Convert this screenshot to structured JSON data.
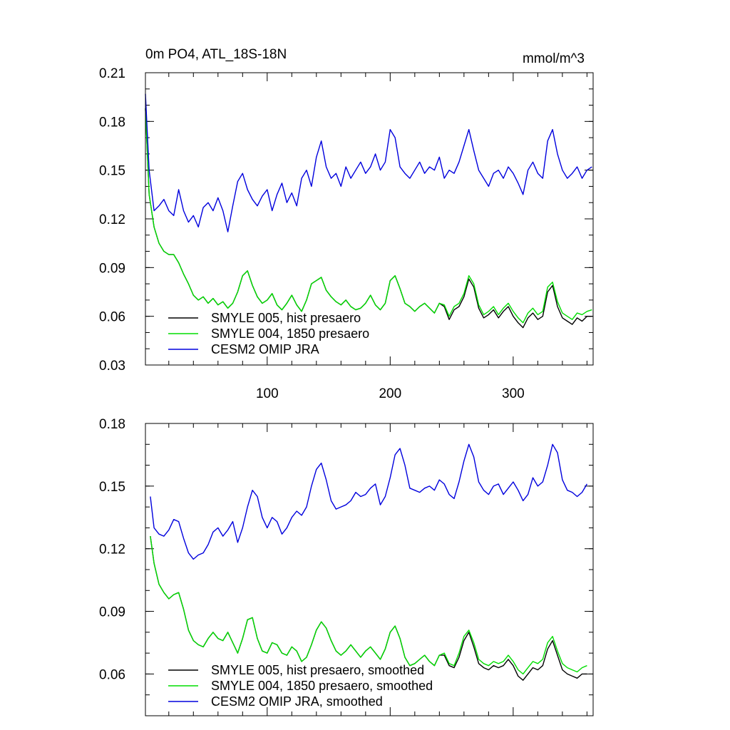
{
  "colors": {
    "smyle005": "#000000",
    "smyle004": "#00dd00",
    "omip": "#0000dd"
  },
  "chart_data": [
    {
      "type": "line",
      "title": "0m PO4, ATL_18S-18N",
      "units": "mmol/m^3",
      "xlim": [
        1,
        365
      ],
      "ylim": [
        0.03,
        0.21
      ],
      "x_ticks": [
        100,
        200,
        300
      ],
      "x_tick_labels": [
        "100",
        "200",
        "300"
      ],
      "y_ticks": [
        0.03,
        0.06,
        0.09,
        0.12,
        0.15,
        0.18,
        0.21
      ],
      "y_tick_labels": [
        "0.03",
        "0.06",
        "0.09",
        "0.12",
        "0.15",
        "0.18",
        "0.21"
      ],
      "legend": [
        "SMYLE 005, hist presaero",
        "SMYLE 004, 1850 presaero",
        "CESM2 OMIP JRA"
      ],
      "legend_position": "bottom-left",
      "x": [
        1,
        4,
        8,
        12,
        16,
        20,
        24,
        28,
        32,
        36,
        40,
        44,
        48,
        52,
        56,
        60,
        64,
        68,
        72,
        76,
        80,
        84,
        88,
        92,
        96,
        100,
        104,
        108,
        112,
        116,
        120,
        124,
        128,
        132,
        136,
        140,
        144,
        148,
        152,
        156,
        160,
        164,
        168,
        172,
        176,
        180,
        184,
        188,
        192,
        196,
        200,
        204,
        208,
        212,
        216,
        220,
        224,
        228,
        232,
        236,
        240,
        244,
        248,
        252,
        256,
        260,
        264,
        268,
        272,
        276,
        280,
        284,
        288,
        292,
        296,
        300,
        304,
        308,
        312,
        316,
        320,
        324,
        328,
        332,
        336,
        340,
        344,
        348,
        352,
        356,
        360,
        364
      ],
      "series": [
        {
          "name": "SMYLE 005, hist presaero",
          "color_key": "smyle005",
          "values": [
            0.188,
            0.135,
            0.115,
            0.105,
            0.1,
            0.098,
            0.098,
            0.093,
            0.086,
            0.08,
            0.073,
            0.07,
            0.072,
            0.068,
            0.071,
            0.067,
            0.069,
            0.065,
            0.068,
            0.075,
            0.085,
            0.088,
            0.079,
            0.072,
            0.068,
            0.07,
            0.074,
            0.067,
            0.064,
            0.068,
            0.073,
            0.067,
            0.063,
            0.07,
            0.08,
            0.082,
            0.084,
            0.076,
            0.072,
            0.069,
            0.067,
            0.07,
            0.066,
            0.064,
            0.065,
            0.068,
            0.073,
            0.067,
            0.064,
            0.068,
            0.082,
            0.085,
            0.077,
            0.068,
            0.066,
            0.063,
            0.066,
            0.068,
            0.065,
            0.062,
            0.068,
            0.066,
            0.058,
            0.064,
            0.066,
            0.072,
            0.083,
            0.078,
            0.065,
            0.059,
            0.061,
            0.064,
            0.059,
            0.063,
            0.066,
            0.06,
            0.056,
            0.053,
            0.059,
            0.062,
            0.058,
            0.06,
            0.075,
            0.079,
            0.066,
            0.059,
            0.057,
            0.055,
            0.059,
            0.057,
            0.06,
            0.06
          ]
        },
        {
          "name": "SMYLE 004, 1850 presaero",
          "color_key": "smyle004",
          "values": [
            0.188,
            0.135,
            0.115,
            0.105,
            0.1,
            0.098,
            0.098,
            0.093,
            0.086,
            0.08,
            0.073,
            0.07,
            0.072,
            0.068,
            0.071,
            0.067,
            0.069,
            0.065,
            0.068,
            0.075,
            0.085,
            0.088,
            0.079,
            0.072,
            0.068,
            0.07,
            0.074,
            0.067,
            0.064,
            0.068,
            0.073,
            0.067,
            0.063,
            0.07,
            0.08,
            0.082,
            0.084,
            0.076,
            0.072,
            0.069,
            0.067,
            0.07,
            0.066,
            0.064,
            0.065,
            0.068,
            0.073,
            0.067,
            0.064,
            0.068,
            0.082,
            0.085,
            0.077,
            0.068,
            0.066,
            0.063,
            0.066,
            0.068,
            0.065,
            0.062,
            0.068,
            0.067,
            0.06,
            0.066,
            0.068,
            0.074,
            0.085,
            0.08,
            0.067,
            0.061,
            0.063,
            0.066,
            0.061,
            0.065,
            0.068,
            0.063,
            0.059,
            0.056,
            0.062,
            0.065,
            0.061,
            0.063,
            0.078,
            0.081,
            0.069,
            0.062,
            0.06,
            0.058,
            0.062,
            0.061,
            0.063,
            0.064
          ]
        },
        {
          "name": "CESM2 OMIP JRA",
          "color_key": "omip",
          "values": [
            0.197,
            0.15,
            0.125,
            0.128,
            0.132,
            0.125,
            0.122,
            0.138,
            0.125,
            0.118,
            0.122,
            0.115,
            0.127,
            0.13,
            0.125,
            0.133,
            0.125,
            0.112,
            0.128,
            0.143,
            0.148,
            0.138,
            0.132,
            0.128,
            0.134,
            0.138,
            0.125,
            0.135,
            0.142,
            0.13,
            0.136,
            0.128,
            0.145,
            0.15,
            0.14,
            0.158,
            0.168,
            0.152,
            0.145,
            0.148,
            0.14,
            0.152,
            0.145,
            0.15,
            0.155,
            0.148,
            0.152,
            0.16,
            0.15,
            0.155,
            0.175,
            0.17,
            0.152,
            0.148,
            0.145,
            0.15,
            0.155,
            0.148,
            0.152,
            0.15,
            0.158,
            0.145,
            0.15,
            0.148,
            0.155,
            0.165,
            0.175,
            0.162,
            0.15,
            0.145,
            0.14,
            0.148,
            0.15,
            0.145,
            0.152,
            0.148,
            0.142,
            0.135,
            0.15,
            0.155,
            0.148,
            0.145,
            0.168,
            0.175,
            0.16,
            0.15,
            0.145,
            0.148,
            0.152,
            0.145,
            0.15,
            0.152
          ]
        }
      ]
    },
    {
      "type": "line",
      "title": "",
      "xlim": [
        1,
        365
      ],
      "ylim": [
        0.04,
        0.18
      ],
      "x_ticks": [
        100,
        200,
        300
      ],
      "x_tick_labels": [],
      "y_ticks": [
        0.06,
        0.09,
        0.12,
        0.15,
        0.18
      ],
      "y_tick_labels": [
        "0.06",
        "0.09",
        "0.12",
        "0.15",
        "0.18"
      ],
      "legend": [
        "SMYLE 005, hist presaero, smoothed",
        "SMYLE 004, 1850 presaero, smoothed",
        "CESM2 OMIP JRA, smoothed"
      ],
      "legend_position": "bottom-left",
      "x": [
        5,
        8,
        12,
        16,
        20,
        24,
        28,
        32,
        36,
        40,
        44,
        48,
        52,
        56,
        60,
        64,
        68,
        72,
        76,
        80,
        84,
        88,
        92,
        96,
        100,
        104,
        108,
        112,
        116,
        120,
        124,
        128,
        132,
        136,
        140,
        144,
        148,
        152,
        156,
        160,
        164,
        168,
        172,
        176,
        180,
        184,
        188,
        192,
        196,
        200,
        204,
        208,
        212,
        216,
        220,
        224,
        228,
        232,
        236,
        240,
        244,
        248,
        252,
        256,
        260,
        264,
        268,
        272,
        276,
        280,
        284,
        288,
        292,
        296,
        300,
        304,
        308,
        312,
        316,
        320,
        324,
        328,
        332,
        336,
        340,
        344,
        348,
        352,
        356,
        360
      ],
      "series": [
        {
          "name": "SMYLE 005, hist presaero, smoothed",
          "color_key": "smyle005",
          "values": [
            0.126,
            0.113,
            0.103,
            0.099,
            0.096,
            0.098,
            0.099,
            0.091,
            0.081,
            0.076,
            0.074,
            0.073,
            0.077,
            0.08,
            0.077,
            0.076,
            0.08,
            0.075,
            0.07,
            0.077,
            0.086,
            0.087,
            0.077,
            0.071,
            0.07,
            0.075,
            0.074,
            0.07,
            0.069,
            0.073,
            0.071,
            0.066,
            0.068,
            0.074,
            0.081,
            0.085,
            0.082,
            0.076,
            0.071,
            0.069,
            0.071,
            0.074,
            0.071,
            0.068,
            0.071,
            0.073,
            0.07,
            0.067,
            0.072,
            0.08,
            0.083,
            0.077,
            0.068,
            0.064,
            0.065,
            0.067,
            0.069,
            0.066,
            0.064,
            0.069,
            0.069,
            0.064,
            0.063,
            0.068,
            0.076,
            0.08,
            0.073,
            0.065,
            0.063,
            0.062,
            0.064,
            0.063,
            0.064,
            0.067,
            0.064,
            0.059,
            0.057,
            0.06,
            0.063,
            0.062,
            0.064,
            0.072,
            0.076,
            0.069,
            0.062,
            0.06,
            0.059,
            0.058,
            0.06,
            0.06
          ]
        },
        {
          "name": "SMYLE 004, 1850 presaero, smoothed",
          "color_key": "smyle004",
          "values": [
            0.126,
            0.113,
            0.103,
            0.099,
            0.096,
            0.098,
            0.099,
            0.091,
            0.081,
            0.076,
            0.074,
            0.073,
            0.077,
            0.08,
            0.077,
            0.076,
            0.08,
            0.075,
            0.07,
            0.077,
            0.086,
            0.087,
            0.077,
            0.071,
            0.07,
            0.075,
            0.074,
            0.07,
            0.069,
            0.073,
            0.071,
            0.066,
            0.068,
            0.074,
            0.081,
            0.085,
            0.082,
            0.076,
            0.071,
            0.069,
            0.071,
            0.074,
            0.071,
            0.068,
            0.071,
            0.073,
            0.07,
            0.067,
            0.072,
            0.08,
            0.083,
            0.077,
            0.068,
            0.064,
            0.065,
            0.067,
            0.069,
            0.066,
            0.064,
            0.069,
            0.07,
            0.065,
            0.064,
            0.07,
            0.078,
            0.081,
            0.075,
            0.067,
            0.065,
            0.064,
            0.066,
            0.065,
            0.066,
            0.069,
            0.066,
            0.062,
            0.06,
            0.063,
            0.066,
            0.065,
            0.067,
            0.075,
            0.078,
            0.071,
            0.065,
            0.063,
            0.062,
            0.061,
            0.063,
            0.064
          ]
        },
        {
          "name": "CESM2 OMIP JRA, smoothed",
          "color_key": "omip",
          "values": [
            0.145,
            0.13,
            0.127,
            0.126,
            0.129,
            0.134,
            0.133,
            0.125,
            0.118,
            0.115,
            0.117,
            0.118,
            0.122,
            0.128,
            0.13,
            0.126,
            0.129,
            0.133,
            0.123,
            0.13,
            0.14,
            0.148,
            0.145,
            0.135,
            0.13,
            0.135,
            0.133,
            0.127,
            0.13,
            0.135,
            0.138,
            0.136,
            0.14,
            0.15,
            0.158,
            0.161,
            0.153,
            0.143,
            0.139,
            0.14,
            0.141,
            0.143,
            0.147,
            0.145,
            0.146,
            0.149,
            0.151,
            0.141,
            0.145,
            0.154,
            0.165,
            0.168,
            0.16,
            0.149,
            0.148,
            0.147,
            0.149,
            0.15,
            0.148,
            0.153,
            0.151,
            0.146,
            0.144,
            0.152,
            0.162,
            0.17,
            0.164,
            0.152,
            0.148,
            0.146,
            0.15,
            0.151,
            0.146,
            0.149,
            0.152,
            0.148,
            0.143,
            0.146,
            0.154,
            0.15,
            0.152,
            0.16,
            0.17,
            0.166,
            0.153,
            0.148,
            0.147,
            0.145,
            0.147,
            0.151
          ]
        }
      ]
    }
  ]
}
